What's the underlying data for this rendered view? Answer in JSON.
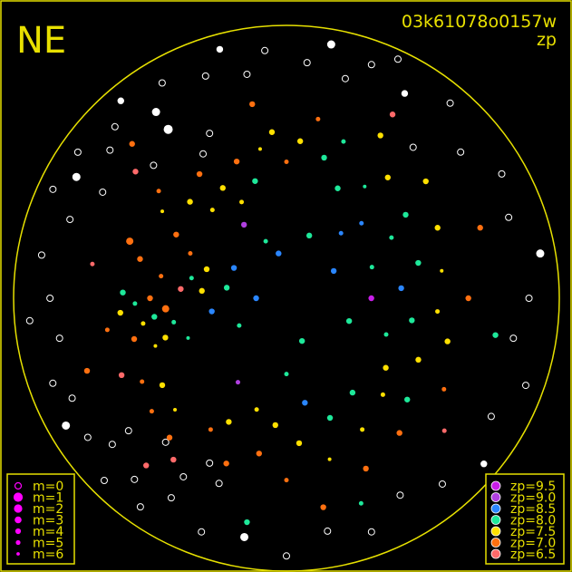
{
  "header": {
    "orientation": "NE",
    "frame_id": "03k61078o0157w",
    "quantity": "zp"
  },
  "colors": {
    "frame": "#e6e000",
    "unmatched": "#ffffff"
  },
  "chart_data": {
    "type": "scatter",
    "projection": "sky altitude/azimuth, zenith at center, horizon at circle",
    "legend_magnitude": [
      {
        "label": "m=0",
        "m": 0
      },
      {
        "label": "m=1",
        "m": 1
      },
      {
        "label": "m=2",
        "m": 2
      },
      {
        "label": "m=3",
        "m": 3
      },
      {
        "label": "m=4",
        "m": 4
      },
      {
        "label": "m=5",
        "m": 5
      },
      {
        "label": "m=6",
        "m": 6
      }
    ],
    "legend_zp": [
      {
        "label": "zp=9.5",
        "zp": 9.5,
        "color": "#c81ee8"
      },
      {
        "label": "zp=9.0",
        "zp": 9.0,
        "color": "#b040e0"
      },
      {
        "label": "zp=8.5",
        "zp": 8.5,
        "color": "#2a86ff"
      },
      {
        "label": "zp=8.0",
        "zp": 8.0,
        "color": "#1ee89a"
      },
      {
        "label": "zp=7.5",
        "zp": 7.5,
        "color": "#ffe000"
      },
      {
        "label": "zp=7.0",
        "zp": 7.0,
        "color": "#ff7010"
      },
      {
        "label": "zp=6.5",
        "zp": 6.5,
        "color": "#ff6a6a"
      }
    ],
    "points_columns": [
      "azimuth_deg",
      "altitude_deg",
      "zp",
      "m"
    ],
    "points": [
      [
        90,
        45,
        7.0,
        3
      ],
      [
        95,
        50,
        7.0,
        2
      ],
      [
        100,
        42,
        7.5,
        4
      ],
      [
        85,
        55,
        6.5,
        3
      ],
      [
        80,
        48,
        7.0,
        4
      ],
      [
        105,
        38,
        7.0,
        3
      ],
      [
        110,
        44,
        7.5,
        5
      ],
      [
        75,
        40,
        7.0,
        3
      ],
      [
        120,
        35,
        7.0,
        4
      ],
      [
        125,
        40,
        7.5,
        3
      ],
      [
        130,
        32,
        7.0,
        4
      ],
      [
        115,
        30,
        6.5,
        3
      ],
      [
        135,
        38,
        7.5,
        5
      ],
      [
        140,
        30,
        7.0,
        3
      ],
      [
        100,
        30,
        7.0,
        4
      ],
      [
        95,
        35,
        7.5,
        3
      ],
      [
        88,
        36,
        8.0,
        3
      ],
      [
        92,
        40,
        8.0,
        4
      ],
      [
        98,
        46,
        8.0,
        3
      ],
      [
        102,
        52,
        8.0,
        4
      ],
      [
        108,
        48,
        7.5,
        3
      ],
      [
        112,
        55,
        8.0,
        5
      ],
      [
        85,
        62,
        7.5,
        3
      ],
      [
        78,
        58,
        8.0,
        4
      ],
      [
        70,
        62,
        7.5,
        3
      ],
      [
        65,
        55,
        7.0,
        4
      ],
      [
        60,
        48,
        7.0,
        3
      ],
      [
        55,
        40,
        7.5,
        5
      ],
      [
        50,
        35,
        7.0,
        4
      ],
      [
        45,
        45,
        7.5,
        3
      ],
      [
        40,
        52,
        7.5,
        4
      ],
      [
        35,
        40,
        7.0,
        3
      ],
      [
        30,
        48,
        7.5,
        3
      ],
      [
        25,
        55,
        7.5,
        4
      ],
      [
        20,
        42,
        7.0,
        3
      ],
      [
        15,
        50,
        8.0,
        3
      ],
      [
        10,
        40,
        7.5,
        5
      ],
      [
        5,
        35,
        7.5,
        3
      ],
      [
        0,
        45,
        7.0,
        4
      ],
      [
        355,
        38,
        7.5,
        3
      ],
      [
        350,
        30,
        7.0,
        4
      ],
      [
        345,
        42,
        8.0,
        3
      ],
      [
        340,
        35,
        8.0,
        4
      ],
      [
        335,
        50,
        8.0,
        3
      ],
      [
        330,
        28,
        7.5,
        3
      ],
      [
        325,
        45,
        8.0,
        5
      ],
      [
        320,
        38,
        7.5,
        3
      ],
      [
        315,
        55,
        8.5,
        4
      ],
      [
        310,
        30,
        7.5,
        3
      ],
      [
        305,
        42,
        8.0,
        3
      ],
      [
        300,
        50,
        8.0,
        4
      ],
      [
        295,
        35,
        7.5,
        3
      ],
      [
        290,
        60,
        8.0,
        4
      ],
      [
        285,
        45,
        8.0,
        3
      ],
      [
        280,
        38,
        7.5,
        5
      ],
      [
        275,
        52,
        8.5,
        3
      ],
      [
        270,
        30,
        7.0,
        3
      ],
      [
        265,
        40,
        7.5,
        4
      ],
      [
        260,
        48,
        8.0,
        3
      ],
      [
        255,
        35,
        7.5,
        3
      ],
      [
        250,
        55,
        8.0,
        4
      ],
      [
        245,
        42,
        7.5,
        3
      ],
      [
        240,
        30,
        7.0,
        4
      ],
      [
        235,
        50,
        7.5,
        3
      ],
      [
        230,
        38,
        8.0,
        3
      ],
      [
        225,
        45,
        7.5,
        4
      ],
      [
        220,
        32,
        7.0,
        3
      ],
      [
        215,
        52,
        8.0,
        3
      ],
      [
        210,
        40,
        7.5,
        4
      ],
      [
        205,
        28,
        7.0,
        3
      ],
      [
        200,
        48,
        8.0,
        3
      ],
      [
        195,
        35,
        7.5,
        5
      ],
      [
        190,
        55,
        8.5,
        3
      ],
      [
        185,
        42,
        7.5,
        3
      ],
      [
        180,
        30,
        7.0,
        4
      ],
      [
        175,
        48,
        7.5,
        3
      ],
      [
        170,
        38,
        7.0,
        3
      ],
      [
        165,
        52,
        7.5,
        4
      ],
      [
        160,
        32,
        7.0,
        3
      ],
      [
        155,
        45,
        7.5,
        3
      ],
      [
        150,
        40,
        7.0,
        4
      ],
      [
        145,
        25,
        6.5,
        3
      ],
      [
        60,
        70,
        8.5,
        3
      ],
      [
        120,
        72,
        8.0,
        4
      ],
      [
        200,
        75,
        8.0,
        3
      ],
      [
        300,
        72,
        8.5,
        3
      ],
      [
        20,
        70,
        8.0,
        4
      ],
      [
        340,
        68,
        8.0,
        3
      ],
      [
        90,
        80,
        8.5,
        3
      ],
      [
        180,
        65,
        8.0,
        4
      ],
      [
        250,
        68,
        8.0,
        3
      ],
      [
        30,
        62,
        9.0,
        3
      ],
      [
        150,
        58,
        9.0,
        4
      ],
      [
        270,
        62,
        9.5,
        3
      ],
      [
        10,
        75,
        8.5,
        3
      ],
      [
        320,
        62,
        8.5,
        4
      ],
      [
        100,
        65,
        8.5,
        3
      ],
      [
        80,
        70,
        8.0,
        3
      ],
      [
        70,
        35,
        7.0,
        2
      ],
      [
        50,
        25,
        6.5,
        3
      ],
      [
        10,
        25,
        7.0,
        3
      ],
      [
        330,
        20,
        6.5,
        3
      ],
      [
        230,
        22,
        6.5,
        4
      ],
      [
        190,
        20,
        7.0,
        3
      ],
      [
        140,
        18,
        6.5,
        3
      ],
      [
        110,
        20,
        7.0,
        3
      ],
      [
        80,
        25,
        6.5,
        4
      ],
      [
        290,
        22,
        7.0,
        3
      ],
      [
        260,
        20,
        8.0,
        3
      ],
      [
        200,
        18,
        8.0,
        4
      ],
      [
        170,
        15,
        8.0,
        3
      ],
      [
        45,
        18,
        7.0,
        3
      ]
    ],
    "unmatched_columns": [
      "azimuth_deg",
      "altitude_deg",
      "m"
    ],
    "unmatched": [
      [
        45,
        10,
        0
      ],
      [
        40,
        5,
        3
      ],
      [
        50,
        14,
        0
      ],
      [
        35,
        15,
        2
      ],
      [
        30,
        8,
        0
      ],
      [
        20,
        12,
        0
      ],
      [
        15,
        5,
        3
      ],
      [
        10,
        15,
        0
      ],
      [
        5,
        8,
        0
      ],
      [
        355,
        12,
        0
      ],
      [
        350,
        5,
        2
      ],
      [
        345,
        15,
        0
      ],
      [
        340,
        8,
        0
      ],
      [
        335,
        3,
        0
      ],
      [
        330,
        12,
        3
      ],
      [
        320,
        6,
        0
      ],
      [
        310,
        15,
        0
      ],
      [
        300,
        8,
        0
      ],
      [
        290,
        12,
        0
      ],
      [
        280,
        5,
        2
      ],
      [
        270,
        10,
        0
      ],
      [
        260,
        14,
        0
      ],
      [
        250,
        6,
        0
      ],
      [
        240,
        12,
        0
      ],
      [
        230,
        5,
        3
      ],
      [
        220,
        10,
        0
      ],
      [
        210,
        15,
        0
      ],
      [
        200,
        8,
        0
      ],
      [
        190,
        12,
        0
      ],
      [
        180,
        5,
        0
      ],
      [
        170,
        10,
        2
      ],
      [
        160,
        8,
        0
      ],
      [
        150,
        14,
        0
      ],
      [
        145,
        6,
        0
      ],
      [
        140,
        12,
        0
      ],
      [
        135,
        5,
        0
      ],
      [
        130,
        15,
        0
      ],
      [
        125,
        10,
        0
      ],
      [
        120,
        6,
        2
      ],
      [
        115,
        12,
        0
      ],
      [
        110,
        8,
        0
      ],
      [
        100,
        14,
        0
      ],
      [
        95,
        5,
        0
      ],
      [
        90,
        12,
        0
      ],
      [
        80,
        8,
        0
      ],
      [
        70,
        14,
        0
      ],
      [
        65,
        5,
        0
      ],
      [
        60,
        10,
        2
      ],
      [
        55,
        6,
        0
      ],
      [
        140,
        28,
        0
      ],
      [
        150,
        22,
        0
      ],
      [
        160,
        25,
        0
      ],
      [
        45,
        28,
        0
      ],
      [
        35,
        22,
        1
      ],
      [
        25,
        30,
        0
      ],
      [
        320,
        25,
        0
      ],
      [
        30,
        35,
        0
      ],
      [
        60,
        20,
        0
      ],
      [
        130,
        22,
        0
      ],
      [
        155,
        30,
        0
      ]
    ]
  }
}
